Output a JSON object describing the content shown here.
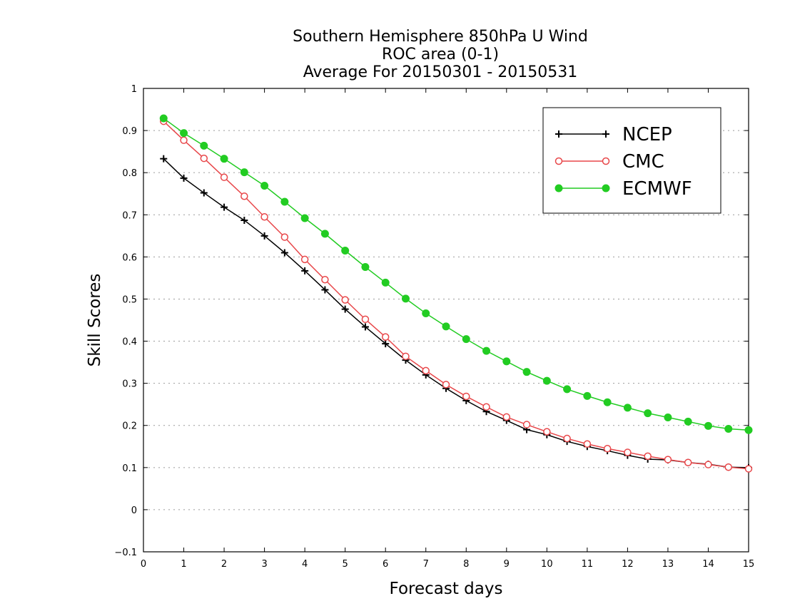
{
  "chart_data": {
    "type": "line",
    "title": [
      "Southern Hemisphere 850hPa U Wind",
      "ROC area (0-1)",
      "Average For 20150301 - 20150531"
    ],
    "xlabel": "Forecast days",
    "ylabel": "Skill Scores",
    "xlim": [
      0,
      15
    ],
    "ylim": [
      -0.1,
      1
    ],
    "xticks": [
      "0",
      "1",
      "2",
      "3",
      "4",
      "5",
      "6",
      "7",
      "8",
      "9",
      "10",
      "11",
      "12",
      "13",
      "14",
      "15"
    ],
    "yticks": [
      "−0.1",
      "0",
      "0.1",
      "0.2",
      "0.3",
      "0.4",
      "0.5",
      "0.6",
      "0.7",
      "0.8",
      "0.9",
      "1"
    ],
    "grid": true,
    "legend_position": "top-right",
    "x": [
      0.5,
      1,
      1.5,
      2,
      2.5,
      3,
      3.5,
      4,
      4.5,
      5,
      5.5,
      6,
      6.5,
      7,
      7.5,
      8,
      8.5,
      9,
      9.5,
      10,
      10.5,
      11,
      11.5,
      12,
      12.5,
      13,
      13.5,
      14,
      14.5,
      15
    ],
    "series": [
      {
        "name": "NCEP",
        "color": "#000000",
        "marker": "plus",
        "values": [
          0.833,
          0.787,
          0.752,
          0.718,
          0.687,
          0.65,
          0.61,
          0.567,
          0.522,
          0.476,
          0.434,
          0.394,
          0.355,
          0.32,
          0.288,
          0.259,
          0.233,
          0.212,
          0.19,
          0.178,
          0.162,
          0.15,
          0.14,
          0.129,
          0.12,
          0.118,
          0.112,
          0.108,
          0.101,
          0.1
        ]
      },
      {
        "name": "CMC",
        "color": "#e8474a",
        "marker": "open-circle",
        "values": [
          0.922,
          0.877,
          0.834,
          0.789,
          0.744,
          0.695,
          0.647,
          0.594,
          0.546,
          0.498,
          0.452,
          0.41,
          0.364,
          0.33,
          0.297,
          0.269,
          0.244,
          0.22,
          0.202,
          0.185,
          0.169,
          0.156,
          0.145,
          0.136,
          0.127,
          0.119,
          0.112,
          0.107,
          0.101,
          0.097
        ]
      },
      {
        "name": "ECMWF",
        "color": "#22cc22",
        "marker": "filled-circle",
        "values": [
          0.929,
          0.894,
          0.864,
          0.833,
          0.801,
          0.769,
          0.731,
          0.692,
          0.655,
          0.615,
          0.576,
          0.539,
          0.501,
          0.466,
          0.435,
          0.405,
          0.377,
          0.352,
          0.327,
          0.306,
          0.286,
          0.27,
          0.255,
          0.242,
          0.229,
          0.219,
          0.209,
          0.199,
          0.192,
          0.189
        ]
      }
    ]
  }
}
